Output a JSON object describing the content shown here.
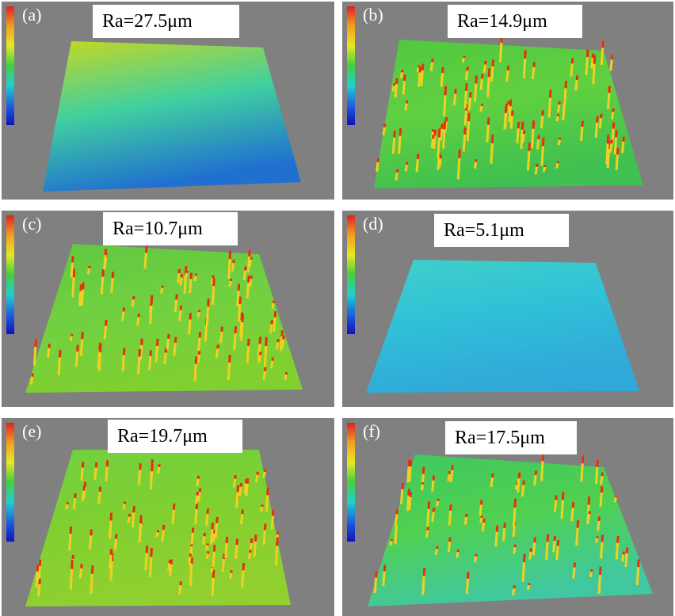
{
  "panels": [
    {
      "label": "(a)",
      "roughness": "Ra=27.5μm"
    },
    {
      "label": "(b)",
      "roughness": "Ra=14.9μm"
    },
    {
      "label": "(c)",
      "roughness": "Ra=10.7μm"
    },
    {
      "label": "(d)",
      "roughness": "Ra=5.1μm"
    },
    {
      "label": "(e)",
      "roughness": "Ra=19.7μm"
    },
    {
      "label": "(f)",
      "roughness": "Ra=17.5μm"
    }
  ]
}
